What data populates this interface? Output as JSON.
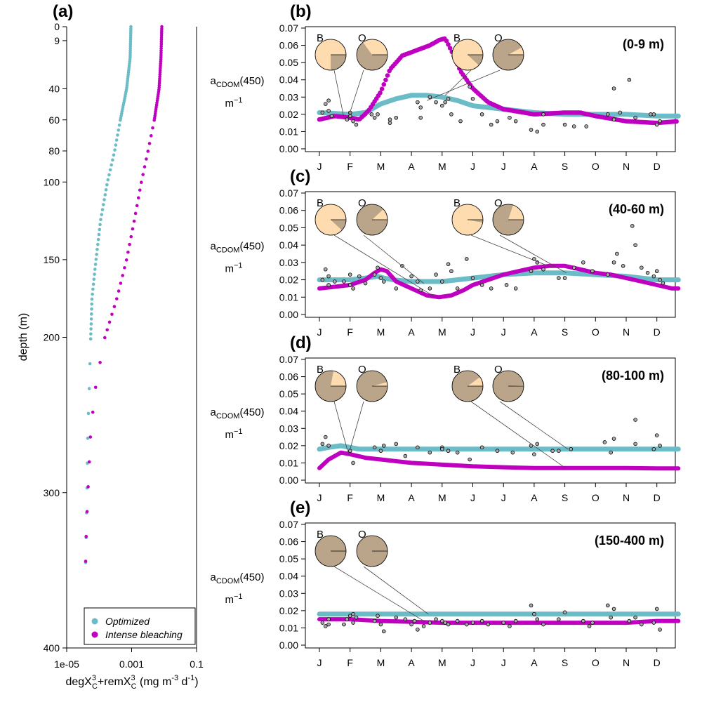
{
  "colors": {
    "optimized": "#6bbcc6",
    "bleaching": "#c000c0",
    "pie_light": "#fedcb0",
    "pie_dark": "#bba58a",
    "obs_fill": "#aaaaaa"
  },
  "panel_a": {
    "label": "(a)",
    "ylabel": "depth (m)",
    "xlabel_html": "degX3C+remX3C (mg m-3 d-1)",
    "xlabel_parts": [
      "degX",
      "3",
      "C",
      "+remX",
      "3",
      "C",
      " (mg m",
      "-3",
      " d",
      "-1",
      ")"
    ],
    "xticks": [
      "1e-05",
      "0.001",
      "0.1"
    ],
    "yticks": [
      0,
      9,
      40,
      60,
      80,
      100,
      150,
      200,
      300,
      400
    ],
    "legend": [
      "Optimized",
      "Intense bleaching"
    ]
  },
  "ylabel_parts": {
    "main": "a",
    "sub": "CDOM",
    "rest": "(450)",
    "unit": "m",
    "unit_sup": "−1"
  },
  "yticks": [
    "0.00",
    "0.01",
    "0.02",
    "0.03",
    "0.04",
    "0.05",
    "0.06",
    "0.07"
  ],
  "months": [
    "J",
    "F",
    "M",
    "A",
    "M",
    "J",
    "J",
    "A",
    "S",
    "O",
    "N",
    "D"
  ],
  "panels": [
    {
      "label": "(b)",
      "depth": "(0-9 m)"
    },
    {
      "label": "(c)",
      "depth": "(40-60 m)"
    },
    {
      "label": "(d)",
      "depth": "(80-100 m)"
    },
    {
      "label": "(e)",
      "depth": "(150-400 m)"
    }
  ],
  "pie_labels": {
    "B": "B",
    "O": "O"
  },
  "chart_data": [
    {
      "type": "scatter",
      "title": "(a)",
      "xlabel": "degX3C+remX3C (mg m-3 d-1)",
      "ylabel": "depth (m)",
      "xscale": "log",
      "xlim": [
        1e-05,
        0.1
      ],
      "ylim": [
        400,
        0
      ],
      "series": [
        {
          "name": "Optimized",
          "points": [
            [
              0.00095,
              0
            ],
            [
              0.0009,
              20
            ],
            [
              0.0007,
              40
            ],
            [
              0.00045,
              60
            ],
            [
              0.0003,
              80
            ],
            [
              0.00018,
              100
            ],
            [
              0.00011,
              125
            ],
            [
              8e-05,
              150
            ],
            [
              6e-05,
              175
            ],
            [
              5.5e-05,
              200
            ],
            [
              5e-05,
              230
            ],
            [
              4.5e-05,
              260
            ],
            [
              4.2e-05,
              300
            ],
            [
              4e-05,
              325
            ],
            [
              3.8e-05,
              350
            ]
          ]
        },
        {
          "name": "Intense bleaching",
          "points": [
            [
              0.0085,
              0
            ],
            [
              0.008,
              20
            ],
            [
              0.007,
              40
            ],
            [
              0.005,
              60
            ],
            [
              0.0032,
              80
            ],
            [
              0.002,
              100
            ],
            [
              0.0012,
              125
            ],
            [
              0.0007,
              150
            ],
            [
              0.00035,
              175
            ],
            [
              0.00015,
              200
            ],
            [
              8e-05,
              230
            ],
            [
              5.5e-05,
              260
            ],
            [
              4.5e-05,
              300
            ],
            [
              4e-05,
              325
            ],
            [
              3.8e-05,
              350
            ]
          ]
        }
      ]
    },
    {
      "type": "line",
      "title": "(b)",
      "annotation": "(0-9 m)",
      "ylabel": "aCDOM(450) m-1",
      "ylim": [
        0,
        0.07
      ],
      "x_months": [
        "J",
        "F",
        "M",
        "A",
        "M",
        "J",
        "J",
        "A",
        "S",
        "O",
        "N",
        "D"
      ],
      "series": [
        {
          "name": "Optimized",
          "x": [
            0,
            1,
            1.5,
            2,
            2.5,
            3,
            3.5,
            4,
            4.5,
            5,
            6,
            7,
            8,
            9,
            10,
            11,
            11.7
          ],
          "y": [
            0.021,
            0.02,
            0.021,
            0.026,
            0.029,
            0.031,
            0.031,
            0.03,
            0.028,
            0.025,
            0.023,
            0.021,
            0.02,
            0.02,
            0.02,
            0.019,
            0.019
          ]
        },
        {
          "name": "Intense bleaching",
          "x": [
            0,
            0.5,
            1,
            1.3,
            1.6,
            2,
            2.3,
            2.7,
            3,
            3.3,
            3.6,
            3.9,
            4.1,
            4.3,
            4.6,
            5,
            5.5,
            6,
            7,
            8,
            8.5,
            9,
            10,
            11,
            11.7
          ],
          "y": [
            0.017,
            0.019,
            0.018,
            0.017,
            0.022,
            0.033,
            0.046,
            0.054,
            0.056,
            0.058,
            0.06,
            0.063,
            0.064,
            0.057,
            0.045,
            0.035,
            0.027,
            0.023,
            0.02,
            0.021,
            0.021,
            0.019,
            0.016,
            0.015,
            0.016
          ]
        },
        {
          "name": "observations",
          "x": [
            0.1,
            0.2,
            0.3,
            0.3,
            0.4,
            0.9,
            1,
            1,
            1.1,
            1.2,
            1.7,
            1.8,
            1.9,
            2.3,
            2.3,
            2.5,
            3.2,
            3.3,
            3.3,
            3.6,
            3.8,
            4.0,
            4.1,
            4.2,
            4.3,
            4.6,
            4.9,
            5.0,
            5.3,
            5.6,
            5.8,
            6.2,
            6.4,
            6.9,
            7.1,
            7.3,
            7.3,
            8.0,
            8.3,
            8.7,
            9.4,
            9.6,
            9.6,
            9.8,
            10.1,
            10.3,
            10.8,
            10.9,
            11.0,
            11.1
          ],
          "y": [
            0.021,
            0.026,
            0.028,
            0.022,
            0.019,
            0.017,
            0.019,
            0.021,
            0.016,
            0.014,
            0.02,
            0.018,
            0.02,
            0.017,
            0.015,
            0.018,
            0.027,
            0.024,
            0.018,
            0.03,
            0.027,
            0.025,
            0.027,
            0.029,
            0.02,
            0.016,
            0.036,
            0.029,
            0.02,
            0.014,
            0.016,
            0.018,
            0.016,
            0.011,
            0.01,
            0.014,
            0.02,
            0.014,
            0.013,
            0.013,
            0.02,
            0.017,
            0.035,
            0.021,
            0.04,
            0.018,
            0.02,
            0.02,
            0.014,
            0.016
          ]
        }
      ]
    },
    {
      "type": "line",
      "title": "(c)",
      "annotation": "(40-60 m)",
      "ylabel": "aCDOM(450) m-1",
      "ylim": [
        0,
        0.07
      ],
      "x_months": [
        "J",
        "F",
        "M",
        "A",
        "M",
        "J",
        "J",
        "A",
        "S",
        "O",
        "N",
        "D"
      ],
      "series": [
        {
          "name": "Optimized",
          "x": [
            0,
            1,
            1.5,
            1.9,
            2.1,
            2.4,
            3,
            3.5,
            4,
            5,
            6,
            7,
            8,
            9,
            10,
            11,
            11.7
          ],
          "y": [
            0.02,
            0.02,
            0.021,
            0.022,
            0.021,
            0.02,
            0.019,
            0.019,
            0.019,
            0.021,
            0.023,
            0.024,
            0.024,
            0.023,
            0.022,
            0.02,
            0.02
          ]
        },
        {
          "name": "Intense bleaching",
          "x": [
            0,
            0.5,
            1,
            1.5,
            1.8,
            2.0,
            2.2,
            2.5,
            3,
            3.5,
            3.9,
            4.3,
            4.7,
            5,
            5.5,
            6,
            6.5,
            7,
            7.5,
            8,
            8.5,
            9,
            9.5,
            10,
            10.5,
            11,
            11.5,
            11.7
          ],
          "y": [
            0.015,
            0.016,
            0.017,
            0.02,
            0.024,
            0.026,
            0.025,
            0.019,
            0.015,
            0.011,
            0.01,
            0.011,
            0.014,
            0.017,
            0.02,
            0.023,
            0.025,
            0.027,
            0.028,
            0.028,
            0.026,
            0.024,
            0.023,
            0.021,
            0.019,
            0.017,
            0.015,
            0.015
          ]
        },
        {
          "name": "observations",
          "x": [
            0.1,
            0.2,
            0.3,
            0.3,
            0.5,
            0.8,
            1.0,
            1.0,
            1.1,
            1.3,
            1.5,
            1.8,
            1.9,
            2.0,
            2.1,
            2.5,
            2.7,
            3.0,
            3.2,
            3.3,
            3.6,
            3.8,
            4.0,
            4.2,
            4.3,
            4.5,
            4.8,
            5.0,
            5.3,
            5.6,
            6.1,
            6.4,
            6.9,
            7.0,
            7.1,
            7.3,
            7.8,
            8.0,
            8.3,
            8.6,
            8.9,
            9.4,
            9.6,
            9.7,
            9.9,
            10.2,
            10.3,
            10.5,
            10.7,
            10.9,
            11.0,
            11.1,
            11.2
          ],
          "y": [
            0.02,
            0.026,
            0.022,
            0.017,
            0.019,
            0.019,
            0.017,
            0.023,
            0.015,
            0.022,
            0.018,
            0.023,
            0.027,
            0.021,
            0.019,
            0.015,
            0.028,
            0.022,
            0.019,
            0.014,
            0.015,
            0.023,
            0.019,
            0.029,
            0.025,
            0.015,
            0.032,
            0.021,
            0.017,
            0.015,
            0.017,
            0.015,
            0.025,
            0.032,
            0.03,
            0.026,
            0.021,
            0.021,
            0.027,
            0.03,
            0.025,
            0.023,
            0.03,
            0.035,
            0.028,
            0.051,
            0.04,
            0.027,
            0.024,
            0.022,
            0.025,
            0.02,
            0.018
          ]
        }
      ]
    },
    {
      "type": "line",
      "title": "(d)",
      "annotation": "(80-100 m)",
      "ylabel": "aCDOM(450) m-1",
      "ylim": [
        0,
        0.07
      ],
      "x_months": [
        "J",
        "F",
        "M",
        "A",
        "M",
        "J",
        "J",
        "A",
        "S",
        "O",
        "N",
        "D"
      ],
      "series": [
        {
          "name": "Optimized",
          "x": [
            0,
            0.3,
            0.7,
            1,
            1.3,
            2,
            3,
            4,
            5,
            6,
            7,
            8,
            9,
            10,
            11,
            11.7
          ],
          "y": [
            0.018,
            0.019,
            0.02,
            0.019,
            0.018,
            0.018,
            0.018,
            0.018,
            0.018,
            0.018,
            0.018,
            0.018,
            0.018,
            0.018,
            0.018,
            0.018
          ]
        },
        {
          "name": "Intense bleaching",
          "x": [
            0,
            0.3,
            0.7,
            1,
            1.5,
            2,
            2.5,
            3,
            4,
            5,
            6,
            7,
            8,
            9,
            10,
            11,
            11.7
          ],
          "y": [
            0.007,
            0.012,
            0.016,
            0.015,
            0.013,
            0.012,
            0.011,
            0.01,
            0.009,
            0.008,
            0.0075,
            0.007,
            0.007,
            0.007,
            0.007,
            0.0068,
            0.0068
          ]
        },
        {
          "name": "observations",
          "x": [
            0.1,
            0.2,
            0.3,
            1.0,
            1.1,
            1.8,
            2.0,
            2.1,
            2.5,
            2.8,
            3.2,
            3.6,
            4.0,
            4.0,
            4.2,
            4.5,
            4.9,
            5.3,
            5.8,
            6.3,
            6.9,
            7.0,
            7.1,
            7.6,
            7.8,
            8.2,
            9.3,
            9.5,
            9.6,
            10.3,
            10.3,
            10.9,
            11.0,
            11.1
          ],
          "y": [
            0.021,
            0.025,
            0.02,
            0.017,
            0.01,
            0.019,
            0.017,
            0.02,
            0.021,
            0.014,
            0.019,
            0.016,
            0.019,
            0.018,
            0.017,
            0.016,
            0.012,
            0.019,
            0.017,
            0.016,
            0.02,
            0.015,
            0.021,
            0.017,
            0.017,
            0.018,
            0.022,
            0.016,
            0.024,
            0.021,
            0.035,
            0.018,
            0.026,
            0.02
          ]
        }
      ]
    },
    {
      "type": "line",
      "title": "(e)",
      "annotation": "(150-400 m)",
      "ylabel": "aCDOM(450) m-1",
      "ylim": [
        0,
        0.07
      ],
      "x_months": [
        "J",
        "F",
        "M",
        "A",
        "M",
        "J",
        "J",
        "A",
        "S",
        "O",
        "N",
        "D"
      ],
      "series": [
        {
          "name": "Optimized",
          "x": [
            0,
            2,
            4,
            6,
            8,
            10,
            11.7
          ],
          "y": [
            0.018,
            0.018,
            0.018,
            0.018,
            0.018,
            0.018,
            0.018
          ]
        },
        {
          "name": "Intense bleaching",
          "x": [
            0,
            1,
            2,
            3,
            4,
            5,
            6,
            7,
            8,
            9,
            10,
            11,
            11.7
          ],
          "y": [
            0.015,
            0.015,
            0.014,
            0.0135,
            0.013,
            0.013,
            0.013,
            0.013,
            0.013,
            0.013,
            0.013,
            0.014,
            0.014
          ]
        },
        {
          "name": "observations",
          "x": [
            0.1,
            0.2,
            0.3,
            0.3,
            0.8,
            0.9,
            1.0,
            1.1,
            1.1,
            1.2,
            1.8,
            1.9,
            2.0,
            2.1,
            2.5,
            2.8,
            3.0,
            3.1,
            3.2,
            3.4,
            3.6,
            3.8,
            4.0,
            4.1,
            4.2,
            4.5,
            4.8,
            5.0,
            5.3,
            5.5,
            6.0,
            6.2,
            6.4,
            6.9,
            7.0,
            7.1,
            7.3,
            7.8,
            8.0,
            8.6,
            8.8,
            8.9,
            9.4,
            9.5,
            9.6,
            10.1,
            10.3,
            10.5,
            10.9,
            11.0,
            11.1
          ],
          "y": [
            0.013,
            0.011,
            0.015,
            0.012,
            0.012,
            0.015,
            0.017,
            0.013,
            0.018,
            0.016,
            0.014,
            0.017,
            0.012,
            0.008,
            0.016,
            0.015,
            0.012,
            0.014,
            0.009,
            0.011,
            0.013,
            0.015,
            0.014,
            0.013,
            0.012,
            0.014,
            0.012,
            0.013,
            0.014,
            0.012,
            0.013,
            0.011,
            0.014,
            0.023,
            0.018,
            0.015,
            0.012,
            0.015,
            0.019,
            0.014,
            0.011,
            0.013,
            0.023,
            0.016,
            0.021,
            0.014,
            0.016,
            0.012,
            0.013,
            0.021,
            0.009
          ]
        }
      ]
    }
  ]
}
